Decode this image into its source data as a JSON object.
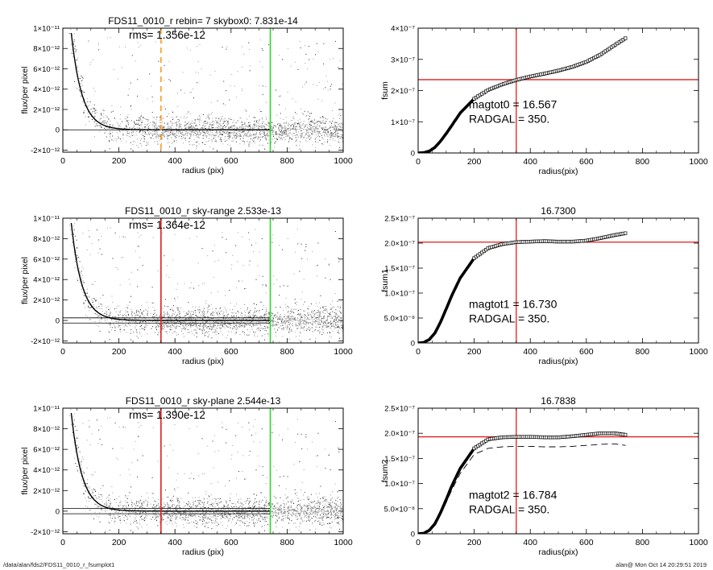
{
  "footer": {
    "path": "/data/alan/fds2/FDS11_0010_r_fsumplot1",
    "stamp": "alan@  Mon Oct 14 20:29:51 2019"
  },
  "colors": {
    "sky_box_line": "#ff9a1f",
    "radius_line": "#e11d1d",
    "outer_radius_line": "#2fd32f",
    "reference_line": "#e11d1d",
    "pixels": "#999999",
    "profile": "#000000"
  },
  "chart_data": [
    {
      "type": "scatter",
      "title": "FDS11_0010_r rebin= 7    skybox0:  7.831e-14",
      "annotation": "rms= 1.356e-12",
      "xlabel": "radius (pix)",
      "ylabel": "flux/per pixel",
      "xlim": [
        0,
        1000
      ],
      "ylim": [
        -2.2e-12,
        1e-11
      ],
      "xticks": [
        0,
        200,
        400,
        600,
        800,
        1000
      ],
      "xtick_labels": [
        "0",
        "200",
        "400",
        "600",
        "800",
        "1000"
      ],
      "yticks": [
        -2e-12,
        0,
        2e-12,
        4e-12,
        6e-12,
        8e-12,
        1e-11
      ],
      "ytick_labels": [
        "-2×10⁻¹²",
        "0",
        "2×10⁻¹²",
        "4×10⁻¹²",
        "6×10⁻¹²",
        "8×10⁻¹²",
        "1×10⁻¹¹"
      ],
      "vlines": [
        {
          "x": 350,
          "color": "#ff9a1f",
          "style": "dashed"
        },
        {
          "x": 740,
          "color": "#2fd32f",
          "style": "solid"
        }
      ],
      "hlines": [
        {
          "y": 0
        }
      ],
      "profile_amplitude": 2.1e-11,
      "profile_scale": 38,
      "outer_radius": 740
    },
    {
      "type": "line",
      "title": "",
      "annotation_lines": [
        "magtot0 = 16.567",
        "RADGAL =    350."
      ],
      "xlabel": "radius(pix)",
      "ylabel": "fsum",
      "xlim": [
        0,
        1000
      ],
      "ylim": [
        0,
        4e-07
      ],
      "xticks": [
        0,
        200,
        400,
        600,
        800,
        1000
      ],
      "xtick_labels": [
        "0",
        "200",
        "400",
        "600",
        "800",
        "1000"
      ],
      "yticks": [
        0,
        1e-07,
        2e-07,
        3e-07,
        4e-07
      ],
      "ytick_labels": [
        "0",
        "1×10⁻⁷",
        "2×10⁻⁷",
        "3×10⁻⁷",
        "4×10⁻⁷"
      ],
      "vline_x": 350,
      "hline_y": 2.35e-07,
      "series": [
        {
          "x": [
            0,
            20,
            40,
            60,
            80,
            100,
            120,
            150,
            200,
            250,
            300,
            350,
            400,
            450,
            500,
            550,
            600,
            650,
            700,
            740
          ],
          "y": [
            0,
            1e-09,
            6e-09,
            1.8e-08,
            3.8e-08,
            6.2e-08,
            8.8e-08,
            1.28e-07,
            1.74e-07,
            2.02e-07,
            2.2e-07,
            2.34e-07,
            2.45e-07,
            2.54e-07,
            2.64e-07,
            2.76e-07,
            2.92e-07,
            3.15e-07,
            3.45e-07,
            3.68e-07
          ]
        }
      ]
    },
    {
      "type": "scatter",
      "title": "FDS11_0010_r sky-range  2.533e-13",
      "annotation": "rms= 1.364e-12",
      "xlabel": "radius (pix)",
      "ylabel": "flux/per pixel",
      "xlim": [
        0,
        1000
      ],
      "ylim": [
        -2.2e-12,
        1e-11
      ],
      "xticks": [
        0,
        200,
        400,
        600,
        800,
        1000
      ],
      "xtick_labels": [
        "0",
        "200",
        "400",
        "600",
        "800",
        "1000"
      ],
      "yticks": [
        -2e-12,
        0,
        2e-12,
        4e-12,
        6e-12,
        8e-12,
        1e-11
      ],
      "ytick_labels": [
        "-2×10⁻¹²",
        "0",
        "2×10⁻¹²",
        "4×10⁻¹²",
        "6×10⁻¹²",
        "8×10⁻¹²",
        "1×10⁻¹¹"
      ],
      "vlines": [
        {
          "x": 350,
          "color": "#e11d1d",
          "style": "solid"
        },
        {
          "x": 740,
          "color": "#2fd32f",
          "style": "solid"
        }
      ],
      "hlines": [
        {
          "y": 2.533e-13
        },
        {
          "y": -2.533e-13
        }
      ],
      "profile_amplitude": 2.1e-11,
      "profile_scale": 38,
      "outer_radius": 740
    },
    {
      "type": "line",
      "title": "16.7300",
      "annotation_lines": [
        "magtot1 = 16.730",
        "RADGAL =    350."
      ],
      "xlabel": "radius(pix)",
      "ylabel": "fsum1",
      "xlim": [
        0,
        1000
      ],
      "ylim": [
        0,
        2.5e-07
      ],
      "xticks": [
        0,
        200,
        400,
        600,
        800,
        1000
      ],
      "xtick_labels": [
        "0",
        "200",
        "400",
        "600",
        "800",
        "1000"
      ],
      "yticks": [
        0,
        5e-08,
        1e-07,
        1.5e-07,
        2e-07,
        2.5e-07
      ],
      "ytick_labels": [
        "0",
        "5.0×10⁻⁸",
        "1.0×10⁻⁷",
        "1.5×10⁻⁷",
        "2.0×10⁻⁷",
        "2.5×10⁻⁷"
      ],
      "vline_x": 350,
      "hline_y": 2.02e-07,
      "series": [
        {
          "x": [
            0,
            20,
            40,
            60,
            80,
            100,
            120,
            150,
            200,
            250,
            300,
            350,
            400,
            450,
            500,
            550,
            600,
            650,
            700,
            740
          ],
          "y": [
            0,
            1e-09,
            7e-09,
            2e-08,
            4.2e-08,
            6.8e-08,
            9.5e-08,
            1.3e-07,
            1.7e-07,
            1.9e-07,
            1.98e-07,
            2.02e-07,
            2.03e-07,
            2.04e-07,
            2.03e-07,
            2.03e-07,
            2.05e-07,
            2.1e-07,
            2.16e-07,
            2.2e-07
          ]
        }
      ]
    },
    {
      "type": "scatter",
      "title": "FDS11_0010_r sky-plane  2.544e-13",
      "annotation": "rms= 1.390e-12",
      "xlabel": "radius (pix)",
      "ylabel": "flux/per pixel",
      "xlim": [
        0,
        1000
      ],
      "ylim": [
        -2.2e-12,
        1e-11
      ],
      "xticks": [
        0,
        200,
        400,
        600,
        800,
        1000
      ],
      "xtick_labels": [
        "0",
        "200",
        "400",
        "600",
        "800",
        "1000"
      ],
      "yticks": [
        -2e-12,
        0,
        2e-12,
        4e-12,
        6e-12,
        8e-12,
        1e-11
      ],
      "ytick_labels": [
        "-2×10⁻¹²",
        "0",
        "2×10⁻¹²",
        "4×10⁻¹²",
        "6×10⁻¹²",
        "8×10⁻¹²",
        "1×10⁻¹¹"
      ],
      "vlines": [
        {
          "x": 350,
          "color": "#e11d1d",
          "style": "solid"
        },
        {
          "x": 740,
          "color": "#2fd32f",
          "style": "solid"
        }
      ],
      "hlines": [
        {
          "y": 2.544e-13
        },
        {
          "y": -2.544e-13
        }
      ],
      "profile_amplitude": 2.1e-11,
      "profile_scale": 38,
      "outer_radius": 740
    },
    {
      "type": "line",
      "title": "16.7838",
      "annotation_lines": [
        "magtot2 = 16.784",
        "RADGAL =    350."
      ],
      "xlabel": "radius(pix)",
      "ylabel": "fsum2",
      "xlim": [
        0,
        1000
      ],
      "ylim": [
        0,
        2.5e-07
      ],
      "xticks": [
        0,
        200,
        400,
        600,
        800,
        1000
      ],
      "xtick_labels": [
        "0",
        "200",
        "400",
        "600",
        "800",
        "1000"
      ],
      "yticks": [
        0,
        5e-08,
        1e-07,
        1.5e-07,
        2e-07,
        2.5e-07
      ],
      "ytick_labels": [
        "0",
        "5.0×10⁻⁸",
        "1.0×10⁻⁷",
        "1.5×10⁻⁷",
        "2.0×10⁻⁷",
        "2.5×10⁻⁷"
      ],
      "vline_x": 350,
      "hline_y": 1.93e-07,
      "series": [
        {
          "x": [
            0,
            20,
            40,
            60,
            80,
            100,
            120,
            150,
            200,
            250,
            300,
            350,
            400,
            450,
            500,
            550,
            600,
            650,
            700,
            740
          ],
          "y": [
            0,
            1e-09,
            7e-09,
            2e-08,
            4.2e-08,
            6.8e-08,
            9.5e-08,
            1.3e-07,
            1.7e-07,
            1.88e-07,
            1.92e-07,
            1.93e-07,
            1.93e-07,
            1.92e-07,
            1.92e-07,
            1.94e-07,
            1.97e-07,
            2e-07,
            2e-07,
            1.97e-07
          ]
        },
        {
          "x": [
            0,
            20,
            40,
            60,
            80,
            100,
            120,
            150,
            200,
            250,
            300,
            350,
            400,
            450,
            500,
            550,
            600,
            650,
            700,
            740
          ],
          "y": [
            0,
            1e-09,
            6e-09,
            1.8e-08,
            3.8e-08,
            6.2e-08,
            8.7e-08,
            1.2e-07,
            1.58e-07,
            1.7e-07,
            1.73e-07,
            1.74e-07,
            1.74e-07,
            1.73e-07,
            1.73e-07,
            1.74e-07,
            1.76e-07,
            1.78e-07,
            1.79e-07,
            1.76e-07
          ]
        }
      ]
    }
  ]
}
